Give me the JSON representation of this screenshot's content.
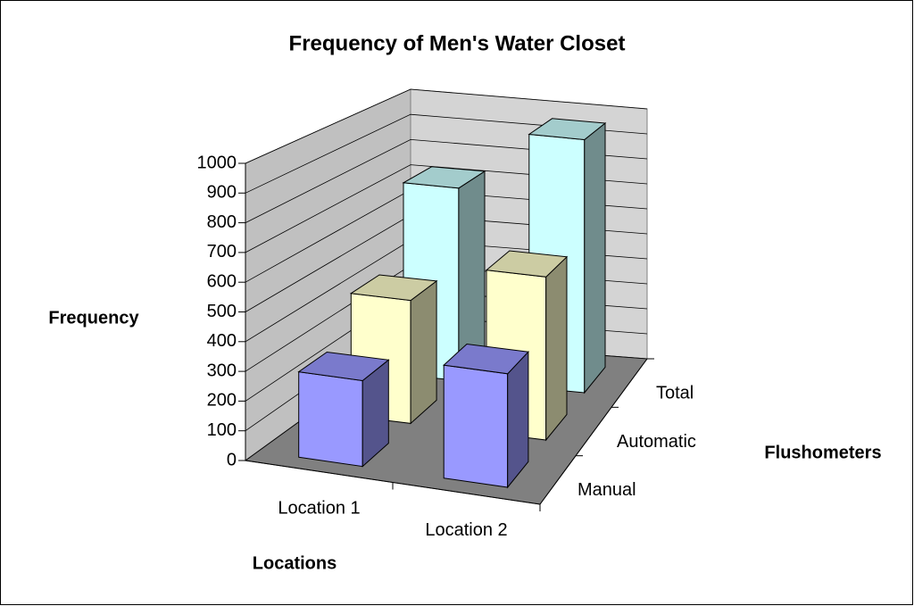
{
  "chart_data": {
    "type": "bar3d",
    "title": "Frequency of Men's Water Closet",
    "y_label": "Frequency",
    "x_label": "Locations",
    "z_label": "Flushometers",
    "categories": [
      "Location 1",
      "Location 2"
    ],
    "series": [
      {
        "name": "Manual",
        "color": "#9999ff",
        "values": [
          290,
          380
        ]
      },
      {
        "name": "Automatic",
        "color": "#ffffcc",
        "values": [
          440,
          580
        ]
      },
      {
        "name": "Total",
        "color": "#ccffff",
        "values": [
          730,
          960
        ]
      }
    ],
    "ylim": [
      0,
      1000
    ],
    "yticks": [
      0,
      100,
      200,
      300,
      400,
      500,
      600,
      700,
      800,
      900,
      1000
    ],
    "grid": true
  }
}
